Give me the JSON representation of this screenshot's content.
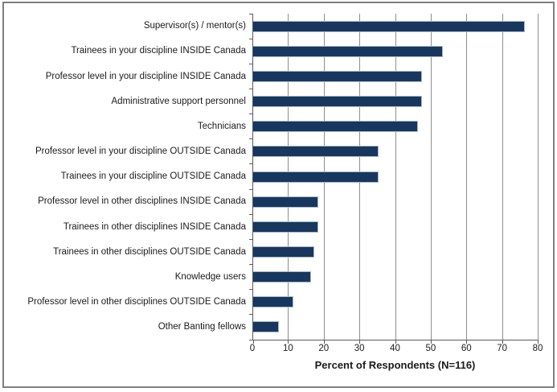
{
  "chart_data": {
    "type": "bar",
    "orientation": "horizontal",
    "title": "",
    "xlabel": "Percent of Respondents (N=116)",
    "xlim": [
      0,
      80
    ],
    "xticks": [
      0,
      10,
      20,
      30,
      40,
      50,
      60,
      70,
      80
    ],
    "grid": "vertical",
    "legend_position": "none",
    "categories": [
      "Supervisor(s) / mentor(s)",
      "Trainees in your discipline INSIDE Canada",
      "Professor level in your discipline INSIDE Canada",
      "Administrative support personnel",
      "Technicians",
      "Professor level in your discipline OUTSIDE Canada",
      "Trainees in your discipline OUTSIDE Canada",
      "Professor level in other disciplines INSIDE Canada",
      "Trainees in other disciplines INSIDE Canada",
      "Trainees in other disciplines OUTSIDE Canada",
      "Knowledge users",
      "Professor level in other disciplines OUTSIDE Canada",
      "Other Banting fellows"
    ],
    "values": [
      76,
      53,
      47,
      47,
      46,
      35,
      35,
      18,
      18,
      17,
      16,
      11,
      7
    ],
    "colors": {
      "bar_fill": "#17375E",
      "bar_border": "#A9BACE",
      "gridline": "#8E8E8E",
      "axis_line": "#5A5A5A",
      "text": "#1A1A1A",
      "chart_border": "#7F7F7F",
      "background": "#FFFFFF"
    }
  }
}
